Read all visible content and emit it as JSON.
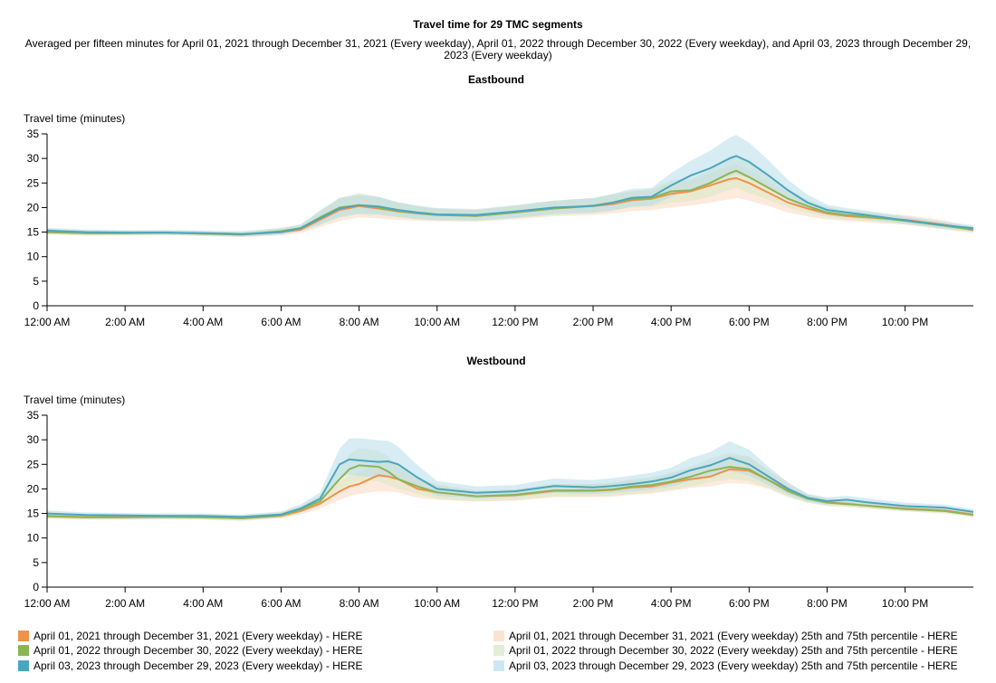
{
  "chart_data": {
    "title": "Travel time for 29 TMC segments",
    "subtitle_line1": "Averaged per fifteen minutes for April 01, 2021 through December 31, 2021 (Every weekday), April 01, 2022 through December 30, 2022 (Every weekday), and April 03, 2023 through December 29,",
    "subtitle_line2": "2023 (Every weekday)",
    "x_tick_labels": [
      "12:00 AM",
      "2:00 AM",
      "4:00 AM",
      "6:00 AM",
      "8:00 AM",
      "10:00 AM",
      "12:00 PM",
      "2:00 PM",
      "4:00 PM",
      "6:00 PM",
      "8:00 PM",
      "10:00 PM"
    ],
    "x_tick_hours": [
      0,
      2,
      4,
      6,
      8,
      10,
      12,
      14,
      16,
      18,
      20,
      22
    ],
    "colors": {
      "2021_line": "#f0924a",
      "2022_line": "#8cb457",
      "2023_line": "#4aa6be",
      "2021_band": "#fbd8bf",
      "2022_band": "#d9e8c5",
      "2023_band": "#b6dcea"
    },
    "legend": [
      {
        "label": "April 01, 2021 through December 31, 2021 (Every weekday) - HERE",
        "color": "#f0924a"
      },
      {
        "label": "April 01, 2022 through December 30, 2022 (Every weekday) - HERE",
        "color": "#8cb457"
      },
      {
        "label": "April 03, 2023 through December 29, 2023 (Every weekday) - HERE",
        "color": "#4aa6be"
      },
      {
        "label": "April 01, 2021 through December 31, 2021 (Every weekday) 25th and 75th percentile - HERE",
        "color": "#fbe3d2"
      },
      {
        "label": "April 01, 2022 through December 30, 2022 (Every weekday) 25th and 75th percentile - HERE",
        "color": "#e3eed6"
      },
      {
        "label": "April 03, 2023 through December 29, 2023 (Every weekday) 25th and 75th percentile - HERE",
        "color": "#cde7f1"
      }
    ],
    "panels": [
      {
        "type": "line",
        "title": "Eastbound",
        "ylabel": "Travel time (minutes)",
        "ylim": [
          0,
          35
        ],
        "yticks": [
          0,
          5,
          10,
          15,
          20,
          25,
          30,
          35
        ],
        "x_hours": [
          0,
          1,
          2,
          3,
          4,
          5,
          6,
          6.5,
          7,
          7.5,
          8,
          8.5,
          9,
          9.5,
          10,
          11,
          12,
          13,
          14,
          14.5,
          15,
          15.5,
          16,
          16.5,
          17,
          17.5,
          17.67,
          18,
          18.5,
          19,
          19.5,
          20,
          20.5,
          21,
          22,
          23,
          23.75
        ],
        "series": [
          {
            "name": "2021",
            "values": [
              15,
              14.8,
              14.8,
              14.9,
              14.7,
              14.5,
              15,
              15.5,
              17.5,
              19.5,
              20.3,
              19.8,
              19.2,
              18.8,
              18.5,
              18.3,
              19,
              19.8,
              20.3,
              20.7,
              21.5,
              21.8,
              22.8,
              23.3,
              24.5,
              25.8,
              26,
              25,
              23,
              21,
              19.8,
              18.8,
              18.3,
              18,
              17.5,
              16.5,
              15.4
            ],
            "low": [
              14.5,
              14.3,
              14.3,
              14.4,
              14.2,
              14,
              14.3,
              14.8,
              16,
              17.3,
              18,
              17.8,
              17.5,
              17.3,
              17.2,
              17.1,
              17.6,
              18.2,
              18.5,
              18.8,
              19.3,
              19.5,
              20,
              20.4,
              21,
              21.7,
              22,
              21.4,
              20.3,
              19,
              18.2,
              17.6,
              17.3,
              17,
              16.5,
              15.6,
              14.8
            ],
            "high": [
              15.6,
              15.4,
              15.4,
              15.4,
              15.2,
              15,
              15.7,
              16.3,
              19,
              21.8,
              22.5,
              22,
              21,
              20.3,
              19.8,
              19.5,
              20.4,
              21.4,
              22,
              22.6,
              23.3,
              23.5,
              24.9,
              25.5,
              27,
              28.5,
              28.8,
              27.6,
              25.3,
              23,
              21.3,
              20,
              19.3,
              19,
              18.5,
              17.4,
              16
            ]
          },
          {
            "name": "2022",
            "values": [
              15,
              14.8,
              14.8,
              14.9,
              14.7,
              14.5,
              15.2,
              15.8,
              18,
              20,
              20.5,
              20,
              19.3,
              18.8,
              18.5,
              18.3,
              19,
              19.8,
              20.4,
              21,
              21.7,
              22,
              23.3,
              23.5,
              25,
              27,
              27.5,
              26.2,
              24,
              21.8,
              20.3,
              19,
              18.5,
              18.2,
              17.3,
              16.3,
              15.5
            ],
            "low": [
              14.5,
              14.3,
              14.3,
              14.4,
              14.2,
              14,
              14.5,
              15.2,
              16.6,
              18.2,
              18.7,
              18.5,
              18,
              17.6,
              17.4,
              17.3,
              17.8,
              18.5,
              19,
              19.4,
              20,
              20.2,
              21,
              21.3,
              22.2,
              23.6,
              24,
              23,
              21.5,
              20,
              18.9,
              18,
              17.6,
              17.3,
              16.6,
              15.6,
              15
            ],
            "high": [
              15.5,
              15.3,
              15.3,
              15.4,
              15.2,
              15,
              15.9,
              16.4,
              19.5,
              22,
              23,
              22.2,
              21,
              20.2,
              19.8,
              19.5,
              20.3,
              21.3,
              21.9,
              22.7,
              23.4,
              23.7,
              25.6,
              25.8,
              27.8,
              30.3,
              30.8,
              29.3,
              26.5,
              23.6,
              21.6,
              20.1,
              19.4,
              19.1,
              18.1,
              17,
              16
            ]
          },
          {
            "name": "2023",
            "values": [
              15.3,
              15,
              14.9,
              14.9,
              14.8,
              14.6,
              15,
              15.8,
              17.8,
              19.8,
              20.5,
              20.2,
              19.5,
              19,
              18.6,
              18.5,
              19.2,
              20,
              20.3,
              21,
              22,
              22.2,
              24.5,
              26.5,
              28,
              30,
              30.5,
              29.3,
              26.5,
              23.5,
              21,
              19.5,
              19,
              18.5,
              17.4,
              16.4,
              15.8
            ],
            "low": [
              14.8,
              14.6,
              14.5,
              14.5,
              14.4,
              14.1,
              14.5,
              15.2,
              16.5,
              18,
              18.7,
              18.6,
              18.1,
              17.7,
              17.4,
              17.4,
              17.9,
              18.7,
              18.9,
              19.4,
              20.2,
              20.4,
              22.2,
              23.7,
              24.8,
              26.4,
              26.9,
              26,
              23.9,
              21.6,
              19.5,
              18.4,
              18,
              17.6,
              16.7,
              15.7,
              15.2
            ],
            "high": [
              15.9,
              15.5,
              15.4,
              15.4,
              15.3,
              15.2,
              15.8,
              16.6,
              19.3,
              22,
              22.6,
              22.2,
              21.1,
              20.4,
              19.9,
              19.7,
              20.5,
              21.4,
              21.9,
              22.8,
              23.8,
              24,
              27,
              29.5,
              31.6,
              34.2,
              34.8,
              33.2,
              29.6,
              25.6,
              22.6,
              20.6,
              19.9,
              19.4,
              18.2,
              17.1,
              16.4
            ]
          }
        ]
      },
      {
        "type": "line",
        "title": "Westbound",
        "ylabel": "Travel time (minutes)",
        "ylim": [
          0,
          35
        ],
        "yticks": [
          0,
          5,
          10,
          15,
          20,
          25,
          30,
          35
        ],
        "x_hours": [
          0,
          1,
          2,
          3,
          4,
          5,
          6,
          6.5,
          7,
          7.5,
          7.75,
          8,
          8.5,
          8.75,
          9,
          9.5,
          10,
          11,
          12,
          13,
          14,
          14.5,
          15,
          15.5,
          16,
          16.5,
          17,
          17.5,
          18,
          18.5,
          19,
          19.5,
          20,
          20.5,
          21,
          22,
          23,
          23.75
        ],
        "series": [
          {
            "name": "2021",
            "values": [
              14.5,
              14.3,
              14.3,
              14.3,
              14.3,
              14,
              14.5,
              15.5,
              17,
              19.5,
              20.5,
              21,
              22.8,
              22.5,
              22,
              20,
              19.3,
              18.5,
              18.7,
              19.6,
              19.6,
              19.8,
              20.3,
              20.5,
              21.3,
              22,
              22.5,
              24,
              23.7,
              21.8,
              19.8,
              18,
              17.3,
              17,
              16.6,
              16,
              15.6,
              14.8
            ],
            "low": [
              14,
              13.8,
              13.8,
              13.8,
              13.8,
              13.5,
              14,
              14.8,
              16,
              17.8,
              18.5,
              19,
              19.5,
              19.5,
              19.3,
              18.2,
              17.8,
              17.4,
              17.6,
              18.3,
              18.3,
              18.4,
              18.8,
              19,
              19.6,
              20.2,
              20.5,
              21.2,
              21,
              20,
              18.5,
              17.2,
              16.6,
              16.4,
              16,
              15.5,
              15.1,
              14.3
            ],
            "high": [
              15,
              14.8,
              14.8,
              14.8,
              14.8,
              14.5,
              15.1,
              16.3,
              18.3,
              21.5,
              22.7,
              23.3,
              26,
              25.8,
              25,
              22.3,
              20.9,
              19.7,
              19.9,
              21,
              21,
              21.3,
              21.9,
              22.2,
              23.1,
              24.1,
              24.8,
              26.9,
              26.5,
              23.8,
              21.3,
              18.8,
              18.1,
              17.7,
              17.3,
              16.6,
              16.2,
              15.4
            ]
          },
          {
            "name": "2022",
            "values": [
              14.4,
              14.2,
              14.2,
              14.3,
              14.2,
              14,
              14.6,
              15.8,
              17.5,
              22,
              24,
              24.8,
              24.5,
              23.5,
              22,
              20.5,
              19.3,
              18.5,
              18.8,
              19.7,
              19.7,
              19.9,
              20.5,
              20.8,
              21.5,
              22.5,
              23.7,
              24.5,
              24,
              21.8,
              19.5,
              18,
              17.2,
              16.9,
              16.6,
              15.9,
              15.5,
              14.7
            ],
            "low": [
              13.9,
              13.7,
              13.7,
              13.8,
              13.7,
              13.5,
              14.1,
              15,
              16.5,
              19.8,
              21,
              21.5,
              21.5,
              20.8,
              20,
              19,
              18,
              17.5,
              17.7,
              18.5,
              18.5,
              18.6,
              19,
              19.3,
              19.8,
              20.5,
              21.3,
              22,
              21.6,
              20.1,
              18.3,
              17.2,
              16.5,
              16.3,
              16,
              15.4,
              15,
              14.2
            ],
            "high": [
              14.9,
              14.7,
              14.7,
              14.8,
              14.7,
              14.5,
              15.2,
              16.6,
              18.6,
              24.3,
              27,
              28.3,
              27.8,
              26.5,
              24.3,
              22.2,
              20.7,
              19.6,
              19.9,
              21,
              21,
              21.2,
              21.9,
              22.4,
              23.3,
              24.5,
              26.2,
              27.3,
              26.6,
              23.6,
              20.7,
              18.9,
              17.9,
              17.6,
              17.3,
              16.5,
              16.1,
              15.3
            ]
          },
          {
            "name": "2023",
            "values": [
              15,
              14.7,
              14.6,
              14.5,
              14.5,
              14.3,
              14.8,
              16,
              18,
              25,
              26,
              25.8,
              25.5,
              25.6,
              25,
              22.3,
              20,
              19.2,
              19.5,
              20.6,
              20.3,
              20.6,
              21,
              21.5,
              22.3,
              23.8,
              24.8,
              26.3,
              25,
              22.5,
              20,
              18.2,
              17.5,
              17.8,
              17.3,
              16.5,
              16.2,
              15.3
            ],
            "low": [
              14.5,
              14.2,
              14.1,
              14,
              14,
              13.8,
              14.3,
              15.3,
              16.8,
              22.4,
              22.9,
              22.6,
              22.3,
              22.4,
              22.1,
              20.3,
              18.6,
              18,
              18.3,
              19.2,
              18.9,
              19.2,
              19.5,
              19.9,
              20.5,
              21.6,
              22.4,
              23.6,
              22.7,
              20.8,
              18.8,
              17.4,
              16.8,
              17,
              16.6,
              15.9,
              15.6,
              14.7
            ],
            "high": [
              15.6,
              15.2,
              15.1,
              15,
              15,
              14.8,
              15.4,
              16.8,
              19.3,
              28.2,
              30.3,
              30.3,
              29.9,
              29.8,
              28.6,
              24.8,
              21.6,
              20.5,
              20.8,
              22.1,
              21.8,
              22.2,
              22.7,
              23.3,
              24.3,
              26.3,
              27.5,
              29.7,
              28,
              24.5,
              21.3,
              19,
              18.3,
              18.6,
              18.1,
              17.2,
              16.8,
              15.9
            ]
          }
        ]
      }
    ]
  }
}
